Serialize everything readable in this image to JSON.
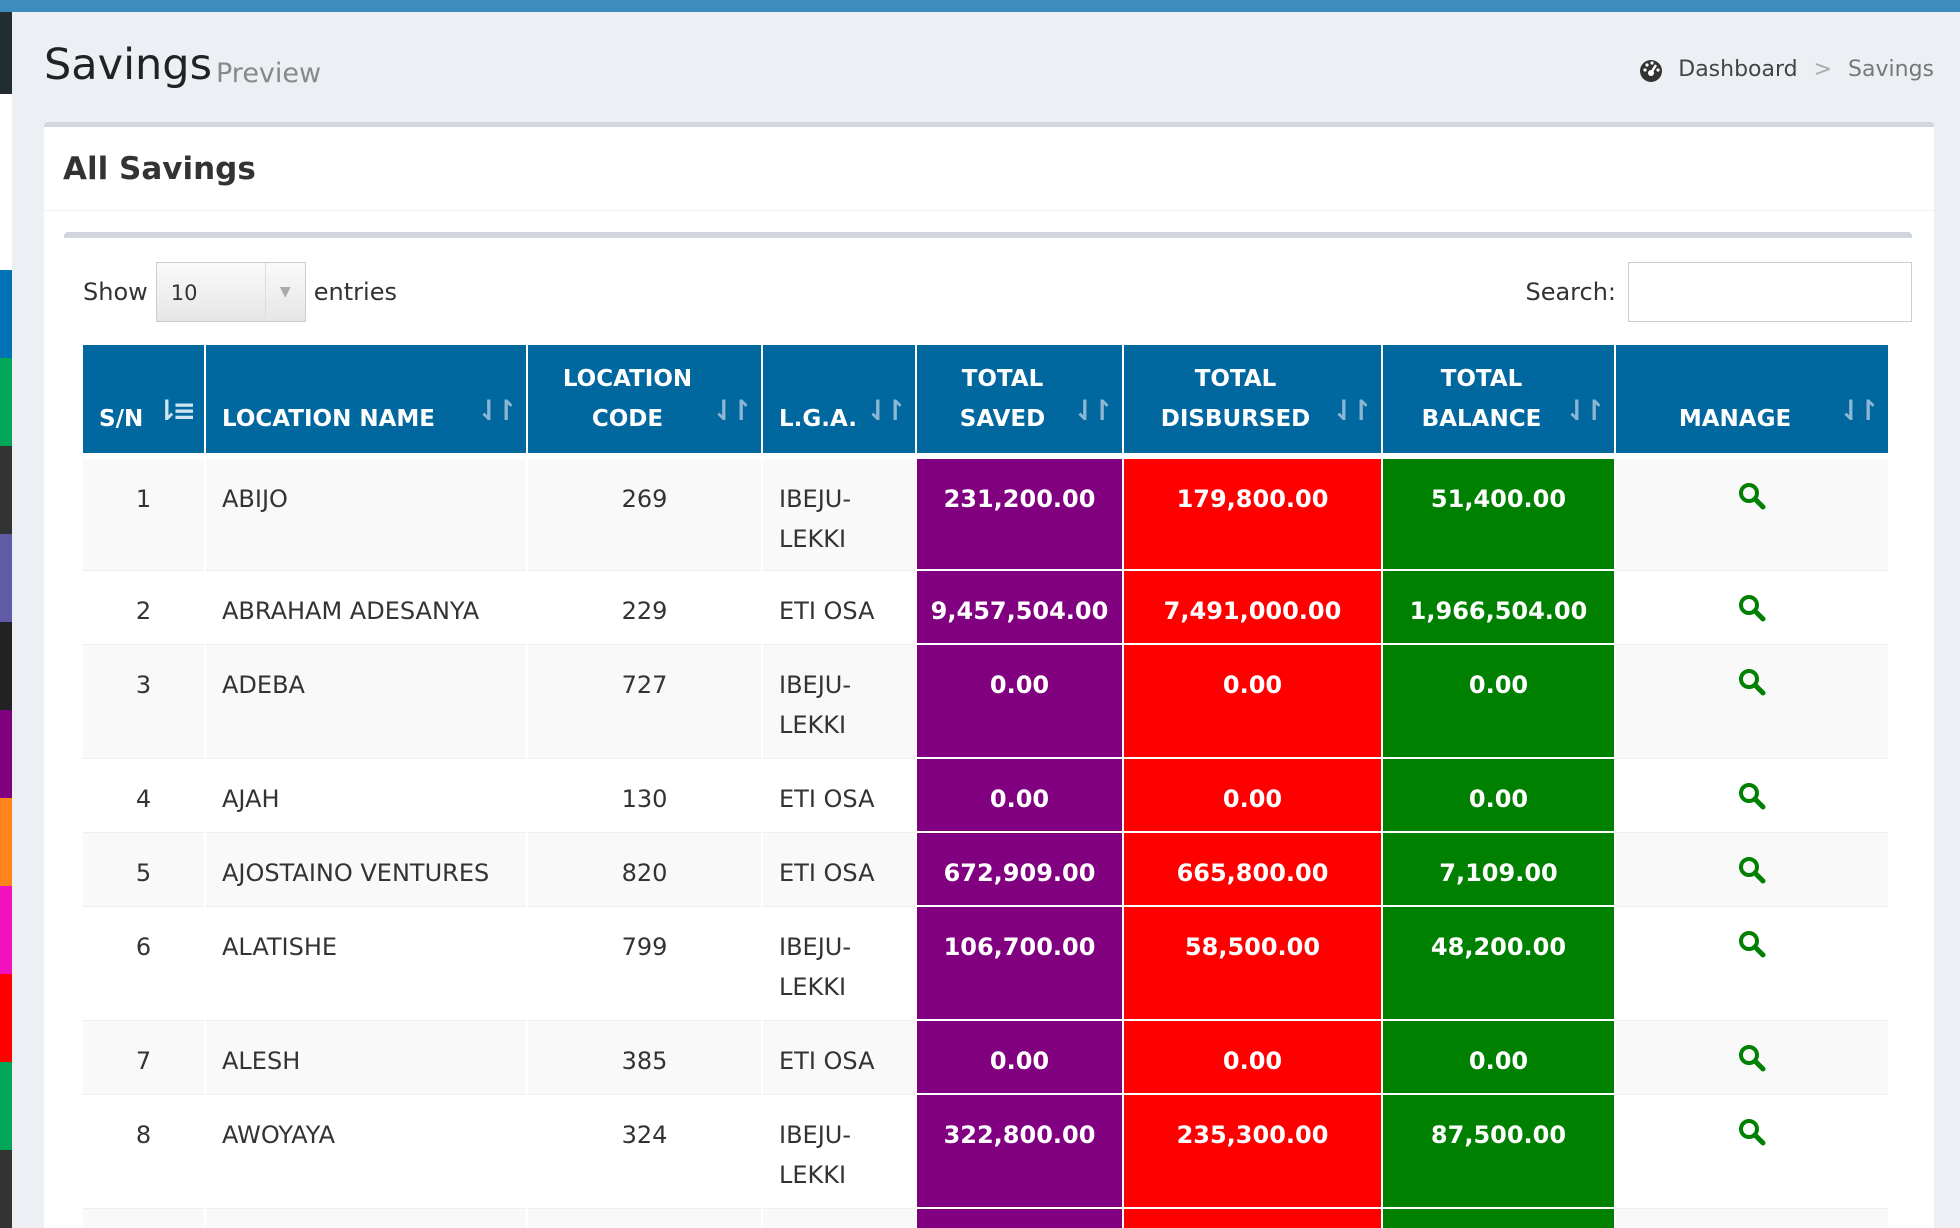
{
  "colors": {
    "topbar": "#3c8dbc",
    "table_header": "#00679f",
    "saved_bg": "#800080",
    "disbursed_bg": "#ff0000",
    "balance_bg": "#008000",
    "manage_icon": "#008000"
  },
  "left_strip_colors": [
    "#222d32",
    "#0073b7",
    "#00a65a",
    "#333333",
    "#605ca8",
    "#222222",
    "#800080",
    "#ff851b",
    "#f012be",
    "#ff0000",
    "#00a65a",
    "#333333"
  ],
  "header": {
    "title": "Savings",
    "subtitle": "Preview",
    "breadcrumb": {
      "icon": "dashboard-icon",
      "home": "Dashboard",
      "separator": ">",
      "current": "Savings"
    }
  },
  "box": {
    "title": "All Savings"
  },
  "controls": {
    "show_label": "Show",
    "entries_value": "10",
    "entries_label": "entries",
    "search_label": "Search:",
    "search_value": ""
  },
  "table": {
    "columns": {
      "sn": "S/N",
      "location_name": "LOCATION NAME",
      "location_code_1": "LOCATION",
      "location_code_2": "CODE",
      "lga": "L.G.A.",
      "total_saved_1": "TOTAL",
      "total_saved_2": "SAVED",
      "total_disbursed_1": "TOTAL",
      "total_disbursed_2": "DISBURSED",
      "total_balance_1": "TOTAL",
      "total_balance_2": "BALANCE",
      "manage": "MANAGE"
    },
    "rows": [
      {
        "sn": "1",
        "name": "ABIJO",
        "code": "269",
        "lga_1": "IBEJU-",
        "lga_2": "LEKKI",
        "saved": "231,200.00",
        "disbursed": "179,800.00",
        "balance": "51,400.00"
      },
      {
        "sn": "2",
        "name": "ABRAHAM ADESANYA",
        "code": "229",
        "lga_1": "ETI OSA",
        "lga_2": "",
        "saved": "9,457,504.00",
        "disbursed": "7,491,000.00",
        "balance": "1,966,504.00"
      },
      {
        "sn": "3",
        "name": "ADEBA",
        "code": "727",
        "lga_1": "IBEJU-",
        "lga_2": "LEKKI",
        "saved": "0.00",
        "disbursed": "0.00",
        "balance": "0.00"
      },
      {
        "sn": "4",
        "name": "AJAH",
        "code": "130",
        "lga_1": "ETI OSA",
        "lga_2": "",
        "saved": "0.00",
        "disbursed": "0.00",
        "balance": "0.00"
      },
      {
        "sn": "5",
        "name": "AJOSTAINO VENTURES",
        "code": "820",
        "lga_1": "ETI OSA",
        "lga_2": "",
        "saved": "672,909.00",
        "disbursed": "665,800.00",
        "balance": "7,109.00"
      },
      {
        "sn": "6",
        "name": "ALATISHE",
        "code": "799",
        "lga_1": "IBEJU-",
        "lga_2": "LEKKI",
        "saved": "106,700.00",
        "disbursed": "58,500.00",
        "balance": "48,200.00"
      },
      {
        "sn": "7",
        "name": "ALESH",
        "code": "385",
        "lga_1": "ETI OSA",
        "lga_2": "",
        "saved": "0.00",
        "disbursed": "0.00",
        "balance": "0.00"
      },
      {
        "sn": "8",
        "name": "AWOYAYA",
        "code": "324",
        "lga_1": "IBEJU-",
        "lga_2": "LEKKI",
        "saved": "322,800.00",
        "disbursed": "235,300.00",
        "balance": "87,500.00"
      }
    ]
  }
}
